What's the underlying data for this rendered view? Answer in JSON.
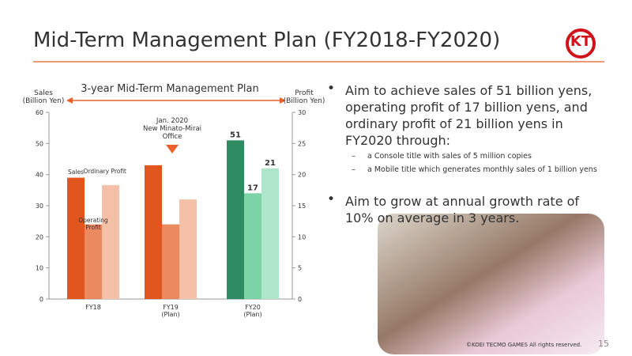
{
  "header": {
    "title": "Mid-Term Management Plan (FY2018-FY2020)",
    "logo": "KT"
  },
  "chart_data": {
    "type": "bar",
    "title": "3-year Mid-Term Management Plan",
    "ylabel": "Sales\n(Billion Yen)",
    "y2label": "Profit\n(Billion Yen)",
    "categories": [
      "FY18",
      "FY19\n(Plan)",
      "FY20\n(Plan)"
    ],
    "ylim": [
      0,
      60
    ],
    "yticks": [
      0,
      10,
      20,
      30,
      40,
      50,
      60
    ],
    "y2lim": [
      0,
      30
    ],
    "y2ticks": [
      0,
      5,
      10,
      15,
      20,
      25,
      30
    ],
    "series": [
      {
        "name": "Sales",
        "colors": [
          "#e0561e",
          "#e0561e",
          "#2e8b62"
        ],
        "values": [
          39,
          43,
          51
        ],
        "value_labels": [
          null,
          null,
          "51"
        ]
      },
      {
        "name": "Operating Profit",
        "axis": "y2",
        "colors": [
          "#eb8a5f",
          "#eb8a5f",
          "#7dd3a8"
        ],
        "values": [
          12,
          12,
          17
        ],
        "value_labels": [
          null,
          null,
          "17"
        ]
      },
      {
        "name": "Ordinary Profit",
        "axis": "y2",
        "colors": [
          "#f5c0a8",
          "#f5c0a8",
          "#aee6cc"
        ],
        "values": [
          18.3,
          16,
          21
        ],
        "value_labels": [
          null,
          null,
          "21"
        ]
      }
    ],
    "annotations": [
      {
        "text": "Jan. 2020\nNew Minato-Mirai\nOffice"
      }
    ]
  },
  "bullets": [
    {
      "text": "Aim to achieve sales of 51 billion yens, operating profit of 17 billion yens, and ordinary profit of 21 billion yens in FY2020 through:",
      "sub": [
        "a Console title with sales of 5 million copies",
        "a Mobile title which generates monthly sales of 1 billion yens"
      ]
    },
    {
      "text": "Aim to grow at annual growth rate of 10% on average in 3 years."
    }
  ],
  "footer": {
    "copyright": "©KOEI TECMO GAMES All rights reserved.",
    "page": "15"
  }
}
